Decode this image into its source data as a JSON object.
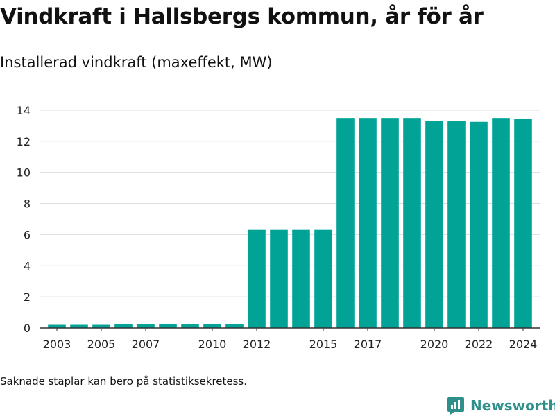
{
  "chart_data": {
    "type": "bar",
    "title": "Vindkraft i Hallsbergs kommun, år för år",
    "subtitle": "Installerad vindkraft (maxeffekt, MW)",
    "categories": [
      2003,
      2004,
      2005,
      2006,
      2007,
      2008,
      2009,
      2010,
      2011,
      2012,
      2013,
      2014,
      2015,
      2016,
      2017,
      2018,
      2019,
      2020,
      2021,
      2022,
      2023,
      2024
    ],
    "values": [
      0.2,
      0.2,
      0.2,
      0.25,
      0.25,
      0.25,
      0.25,
      0.25,
      0.25,
      6.3,
      6.3,
      6.3,
      6.3,
      13.5,
      13.5,
      13.5,
      13.5,
      13.3,
      13.3,
      13.25,
      13.5,
      13.45
    ],
    "x_tick_labels": [
      "2003",
      "2005",
      "2007",
      "2010",
      "2012",
      "2015",
      "2017",
      "2020",
      "2022",
      "2024"
    ],
    "y_ticks": [
      0,
      2,
      4,
      6,
      8,
      10,
      12,
      14
    ],
    "ylim": [
      0,
      14.8
    ],
    "xlabel": "",
    "ylabel": "",
    "grid": true,
    "bar_color": "#00a396",
    "grid_color": "#dddddd",
    "axis_color": "#333333"
  },
  "footnote": "Saknade staplar kan bero på statistiksekretess.",
  "brand": {
    "name": "Newsworthy",
    "icon": "newsworthy-logo-icon",
    "color": "#2f8f8a"
  }
}
